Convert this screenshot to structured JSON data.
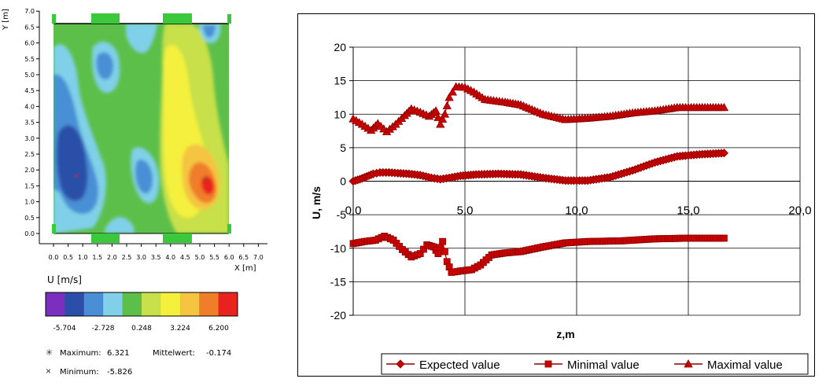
{
  "colors": {
    "series_fill": "#cc0000",
    "series_line": "#8b0000",
    "contour_levels": [
      "#7b2fbe",
      "#2b4fa8",
      "#4a8fd6",
      "#7fd0e8",
      "#5cbf4a",
      "#c8e04a",
      "#f5f03c",
      "#f5c542",
      "#f07d2a",
      "#e8231f"
    ],
    "border_marker": "#3cc83c"
  },
  "chart_data": [
    {
      "type": "heatmap",
      "xlabel": "X [m]",
      "ylabel": "Y [m]",
      "xticks": [
        "0.0",
        "0.5",
        "1.0",
        "1.5",
        "2.0",
        "2.5",
        "3.0",
        "3.5",
        "4.0",
        "4.5",
        "5.0",
        "5.5",
        "6.0",
        "6.5",
        "7.0"
      ],
      "yticks": [
        "0.0",
        "0.5",
        "1.0",
        "1.5",
        "2.0",
        "2.5",
        "3.0",
        "3.5",
        "4.0",
        "4.5",
        "5.0",
        "5.5",
        "6.0",
        "6.5",
        "7.0"
      ],
      "xlim": [
        0,
        7
      ],
      "ylim": [
        0,
        7
      ],
      "colorbar": {
        "label": "U [m/s]",
        "ticks": [
          "-5.704",
          "-2.728",
          "0.248",
          "3.224",
          "6.200"
        ]
      },
      "stats": {
        "maximum_label": "Maximum:",
        "maximum_value": "6.321",
        "minimum_label": "Minimum:",
        "minimum_value": "-5.826",
        "mean_label": "Mittelwert:",
        "mean_value": "-0.174"
      },
      "max_location": [
        5.4,
        1.7
      ],
      "min_location": [
        0.8,
        1.9
      ]
    },
    {
      "type": "line",
      "xlabel": "z,m",
      "ylabel": "U, m/s",
      "xlim": [
        0,
        20
      ],
      "ylim": [
        -20,
        20
      ],
      "xticks": [
        "0,0",
        "5,0",
        "10,0",
        "15,0",
        "20,0"
      ],
      "yticks": [
        "20",
        "15",
        "10",
        "5",
        "0",
        "-5",
        "-10",
        "-15",
        "-20"
      ],
      "grid": true,
      "legend_position": "bottom",
      "series": [
        {
          "name": "Expected value",
          "marker": "diamond",
          "points": [
            [
              0,
              0
            ],
            [
              0.3,
              0.3
            ],
            [
              0.6,
              0.7
            ],
            [
              0.9,
              1.1
            ],
            [
              1.2,
              1.3
            ],
            [
              1.6,
              1.3
            ],
            [
              2.0,
              1.2
            ],
            [
              2.5,
              1.1
            ],
            [
              3.0,
              0.9
            ],
            [
              3.5,
              0.5
            ],
            [
              3.9,
              0.3
            ],
            [
              4.3,
              0.5
            ],
            [
              4.8,
              0.8
            ],
            [
              5.5,
              1.0
            ],
            [
              6.5,
              1.1
            ],
            [
              7.5,
              1.0
            ],
            [
              8.5,
              0.5
            ],
            [
              9.5,
              0.1
            ],
            [
              10.5,
              0.1
            ],
            [
              11.5,
              0.6
            ],
            [
              12.5,
              1.6
            ],
            [
              13.5,
              2.8
            ],
            [
              14.5,
              3.7
            ],
            [
              15.5,
              4.0
            ],
            [
              16.6,
              4.2
            ]
          ]
        },
        {
          "name": "Minimal value",
          "marker": "square",
          "points": [
            [
              0,
              -9.3
            ],
            [
              0.5,
              -9.0
            ],
            [
              1.0,
              -8.8
            ],
            [
              1.4,
              -8.2
            ],
            [
              1.8,
              -8.8
            ],
            [
              2.2,
              -10.2
            ],
            [
              2.6,
              -11.3
            ],
            [
              3.0,
              -10.8
            ],
            [
              3.3,
              -9.5
            ],
            [
              3.6,
              -9.8
            ],
            [
              3.8,
              -10.8
            ],
            [
              4.0,
              -9.0
            ],
            [
              4.2,
              -12.0
            ],
            [
              4.4,
              -13.6
            ],
            [
              4.8,
              -13.4
            ],
            [
              5.3,
              -13.2
            ],
            [
              5.7,
              -12.5
            ],
            [
              6.2,
              -11.0
            ],
            [
              6.8,
              -10.7
            ],
            [
              7.5,
              -10.5
            ],
            [
              8.5,
              -9.8
            ],
            [
              9.5,
              -9.2
            ],
            [
              10.5,
              -9.0
            ],
            [
              12.0,
              -8.9
            ],
            [
              13.5,
              -8.6
            ],
            [
              15.0,
              -8.5
            ],
            [
              16.6,
              -8.5
            ]
          ]
        },
        {
          "name": "Maximal value",
          "marker": "triangle",
          "points": [
            [
              0,
              9.3
            ],
            [
              0.4,
              8.5
            ],
            [
              0.8,
              7.6
            ],
            [
              1.1,
              8.6
            ],
            [
              1.5,
              7.4
            ],
            [
              1.9,
              8.5
            ],
            [
              2.3,
              9.8
            ],
            [
              2.6,
              10.8
            ],
            [
              3.0,
              10.3
            ],
            [
              3.4,
              9.7
            ],
            [
              3.7,
              10.5
            ],
            [
              3.9,
              8.5
            ],
            [
              4.1,
              10.0
            ],
            [
              4.3,
              12.5
            ],
            [
              4.6,
              14.1
            ],
            [
              5.0,
              14.0
            ],
            [
              5.4,
              13.3
            ],
            [
              5.9,
              12.2
            ],
            [
              6.8,
              11.8
            ],
            [
              7.5,
              11.4
            ],
            [
              8.5,
              10.0
            ],
            [
              9.5,
              9.2
            ],
            [
              10.5,
              9.4
            ],
            [
              11.5,
              9.7
            ],
            [
              12.5,
              10.2
            ],
            [
              13.5,
              10.5
            ],
            [
              14.5,
              11.0
            ],
            [
              15.5,
              11.0
            ],
            [
              16.6,
              11.0
            ]
          ]
        }
      ]
    }
  ]
}
